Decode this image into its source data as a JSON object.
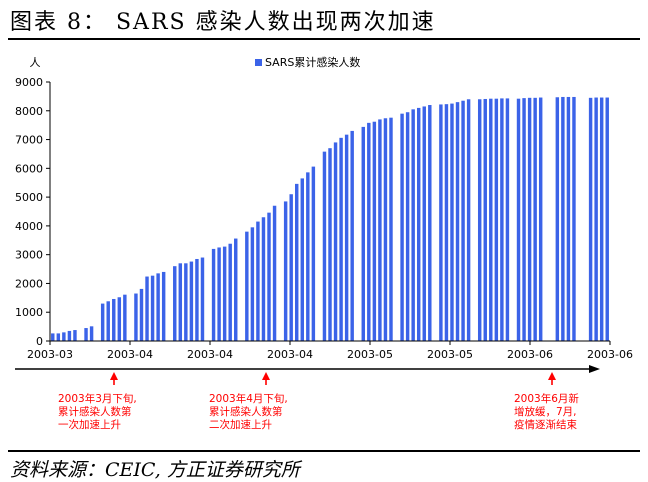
{
  "header": {
    "title": "图表 8：  SARS 感染人数出现两次加速"
  },
  "footer": {
    "source": "资料来源：CEIC, 方正证券研究所"
  },
  "colors": {
    "bar": "#3b63e8",
    "annotation": "#ff0000",
    "axis": "#000000"
  },
  "chart_data": {
    "type": "bar",
    "ylabel": "人",
    "ylim": [
      0,
      9000
    ],
    "yticks": [
      "0",
      "1000",
      "2000",
      "3000",
      "4000",
      "5000",
      "6000",
      "7000",
      "8000",
      "9000"
    ],
    "xtick_labels": [
      "2003-03",
      "2003-04",
      "2003-04",
      "2003-04",
      "2003-05",
      "2003-05",
      "2003-06",
      "2003-06"
    ],
    "legend": {
      "position": "top-center",
      "entries": [
        "SARS累计感染人数"
      ]
    },
    "series": [
      {
        "name": "SARS累计感染人数",
        "values": [
          264,
          264,
          300,
          350,
          380,
          null,
          450,
          510,
          null,
          1300,
          1380,
          1460,
          1520,
          1610,
          null,
          1650,
          1810,
          2240,
          2270,
          2350,
          2400,
          null,
          2600,
          2700,
          2700,
          2760,
          2850,
          2900,
          null,
          3200,
          3250,
          3280,
          3380,
          3560,
          null,
          3800,
          3950,
          4150,
          4300,
          4460,
          4700,
          null,
          4850,
          5100,
          5460,
          5650,
          5860,
          6060,
          null,
          6580,
          6700,
          6900,
          7060,
          7170,
          7300,
          null,
          7440,
          7580,
          7620,
          7700,
          7740,
          7760,
          null,
          7900,
          7950,
          8050,
          8100,
          8150,
          8200,
          null,
          8220,
          8230,
          8250,
          8300,
          8350,
          8400,
          null,
          8400,
          8410,
          8420,
          8420,
          8430,
          8430,
          null,
          8420,
          8440,
          8450,
          8450,
          8460,
          null,
          null,
          8470,
          8480,
          8480,
          8480,
          null,
          null,
          8450,
          8460,
          8460,
          8460
        ]
      }
    ],
    "annotations": [
      {
        "text": [
          "2003年3月下旬,",
          "累计感染人数第",
          "一次加速上升"
        ]
      },
      {
        "text": [
          "2003年4月下旬,",
          "累计感染人数第",
          "二次加速上升"
        ]
      },
      {
        "text": [
          "2003年6月新",
          "增放缓，7月,",
          "疫情逐渐结束"
        ]
      }
    ]
  }
}
